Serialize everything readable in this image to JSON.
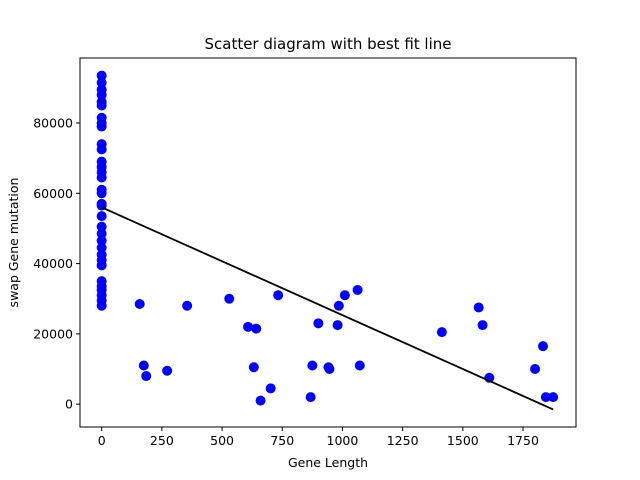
{
  "chart_data": {
    "type": "scatter",
    "title": "Scatter diagram with best fit line",
    "xlabel": "Gene Length",
    "ylabel": "swap Gene mutation",
    "xlim": [
      -90,
      1970
    ],
    "ylim": [
      -6500,
      98500
    ],
    "x_ticks": [
      0,
      250,
      500,
      750,
      1000,
      1250,
      1500,
      1750
    ],
    "x_tick_labels": [
      "0",
      "250",
      "500",
      "750",
      "1000",
      "1250",
      "1500",
      "1750"
    ],
    "y_ticks": [
      0,
      20000,
      40000,
      60000,
      80000
    ],
    "y_tick_labels": [
      "0",
      "20000",
      "40000",
      "60000",
      "80000"
    ],
    "grid": false,
    "legend": "none",
    "colors": {
      "points": "#0000ff",
      "fit_line": "#000000"
    },
    "series": [
      {
        "kind": "points",
        "x": [
          0,
          0,
          0,
          0,
          0,
          0,
          0,
          0,
          0,
          0,
          0,
          0,
          0,
          0,
          0,
          0,
          0,
          0,
          0,
          0,
          0,
          0,
          0,
          0,
          0,
          0,
          0,
          0,
          0,
          0,
          0,
          0,
          0,
          158,
          175,
          185,
          272,
          355,
          530,
          608,
          632,
          642,
          660,
          702,
          733,
          868,
          875,
          900,
          942,
          946,
          980,
          985,
          1010,
          1063,
          1072,
          1413,
          1566,
          1582,
          1610,
          1800,
          1833,
          1845,
          1875
        ],
        "y": [
          93500,
          91500,
          89500,
          88000,
          86000,
          85000,
          81500,
          80000,
          79000,
          74000,
          72500,
          69000,
          67500,
          66000,
          64500,
          61000,
          60000,
          57000,
          56500,
          53500,
          50500,
          48500,
          46500,
          44500,
          42500,
          41000,
          39500,
          35000,
          33500,
          32500,
          31000,
          29500,
          28000,
          28500,
          11000,
          8000,
          9500,
          28000,
          30000,
          22000,
          10500,
          21500,
          1000,
          4500,
          31000,
          2000,
          11000,
          23000,
          10500,
          10000,
          22500,
          28000,
          31000,
          32500,
          11000,
          20500,
          27500,
          22500,
          7500,
          10000,
          16500,
          2000,
          2000
        ]
      },
      {
        "kind": "fit_line",
        "x": [
          0,
          1875
        ],
        "y": [
          56000,
          -1500
        ]
      }
    ]
  }
}
